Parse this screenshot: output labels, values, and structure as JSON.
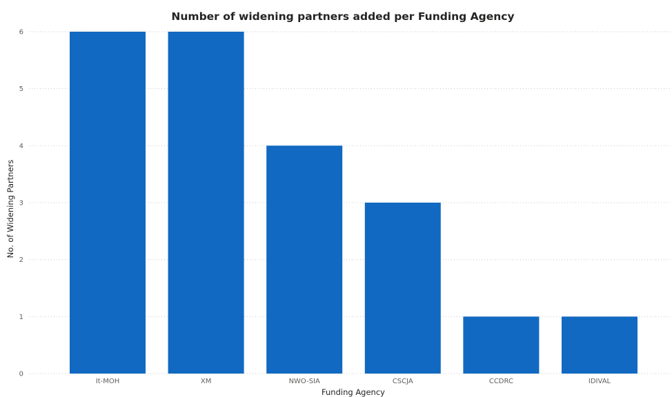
{
  "chart_data": {
    "type": "bar",
    "title": "Number of widening partners added per Funding Agency",
    "xlabel": "Funding Agency",
    "ylabel": "No. of Widening Partners",
    "categories": [
      "It-MOH",
      "XM",
      "NWO-SIA",
      "CSCJA",
      "CCDRC",
      "IDIVAL"
    ],
    "values": [
      6,
      6,
      4,
      3,
      1,
      1
    ],
    "ylim": [
      0,
      6
    ],
    "yticks": [
      0,
      1,
      2,
      3,
      4,
      5,
      6
    ],
    "grid": true,
    "bar_color": "#1169c1"
  }
}
